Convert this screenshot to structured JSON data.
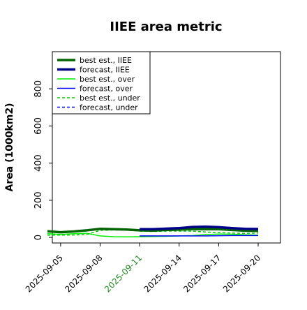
{
  "chart_data": {
    "type": "line",
    "title": "IIEE area metric",
    "xlabel": "",
    "ylabel": "Area (1000km2)",
    "x": [
      "2025-09-04",
      "2025-09-05",
      "2025-09-06",
      "2025-09-07",
      "2025-09-08",
      "2025-09-09",
      "2025-09-10",
      "2025-09-11",
      "2025-09-12",
      "2025-09-13",
      "2025-09-14",
      "2025-09-15",
      "2025-09-16",
      "2025-09-17",
      "2025-09-18",
      "2025-09-19",
      "2025-09-20"
    ],
    "x_ticks": [
      "2025-09-05",
      "2025-09-08",
      "2025-09-11",
      "2025-09-14",
      "2025-09-17",
      "2025-09-20"
    ],
    "highlighted_tick": "2025-09-11",
    "highlight_color": "#228b22",
    "ylim": [
      -30,
      1000
    ],
    "y_ticks": [
      0,
      200,
      400,
      600,
      800
    ],
    "grid": false,
    "legend_position": "top-left",
    "series": [
      {
        "name": "best est., IIEE",
        "color": "#006400",
        "dash": "solid",
        "weight": "thick",
        "values": [
          33,
          28,
          32,
          38,
          46,
          44,
          42,
          38,
          37,
          40,
          42,
          44,
          44,
          44,
          40,
          36,
          35
        ]
      },
      {
        "name": "forecast, IIEE",
        "color": "#00008b",
        "dash": "solid",
        "weight": "thick",
        "values": [
          null,
          null,
          null,
          null,
          null,
          null,
          null,
          44,
          44,
          47,
          50,
          56,
          58,
          55,
          50,
          46,
          45
        ]
      },
      {
        "name": "best est., over",
        "color": "#00ee00",
        "dash": "solid",
        "weight": "thin",
        "values": [
          20,
          16,
          20,
          22,
          8,
          4,
          3,
          4,
          5,
          6,
          8,
          10,
          15,
          18,
          17,
          14,
          12
        ]
      },
      {
        "name": "forecast, over",
        "color": "#0000ff",
        "dash": "solid",
        "weight": "thin",
        "values": [
          null,
          null,
          null,
          null,
          null,
          null,
          null,
          8,
          8,
          8,
          8,
          8,
          8,
          9,
          10,
          10,
          10
        ]
      },
      {
        "name": "best est., under",
        "color": "#00cc00",
        "dash": "dashed",
        "weight": "thin",
        "values": [
          12,
          12,
          13,
          16,
          38,
          40,
          39,
          34,
          32,
          34,
          34,
          34,
          29,
          26,
          23,
          22,
          23
        ]
      },
      {
        "name": "forecast, under",
        "color": "#0000ff",
        "dash": "dashed",
        "weight": "thin",
        "values": [
          null,
          null,
          null,
          null,
          null,
          null,
          null,
          36,
          36,
          39,
          42,
          48,
          50,
          46,
          40,
          36,
          35
        ]
      }
    ]
  }
}
